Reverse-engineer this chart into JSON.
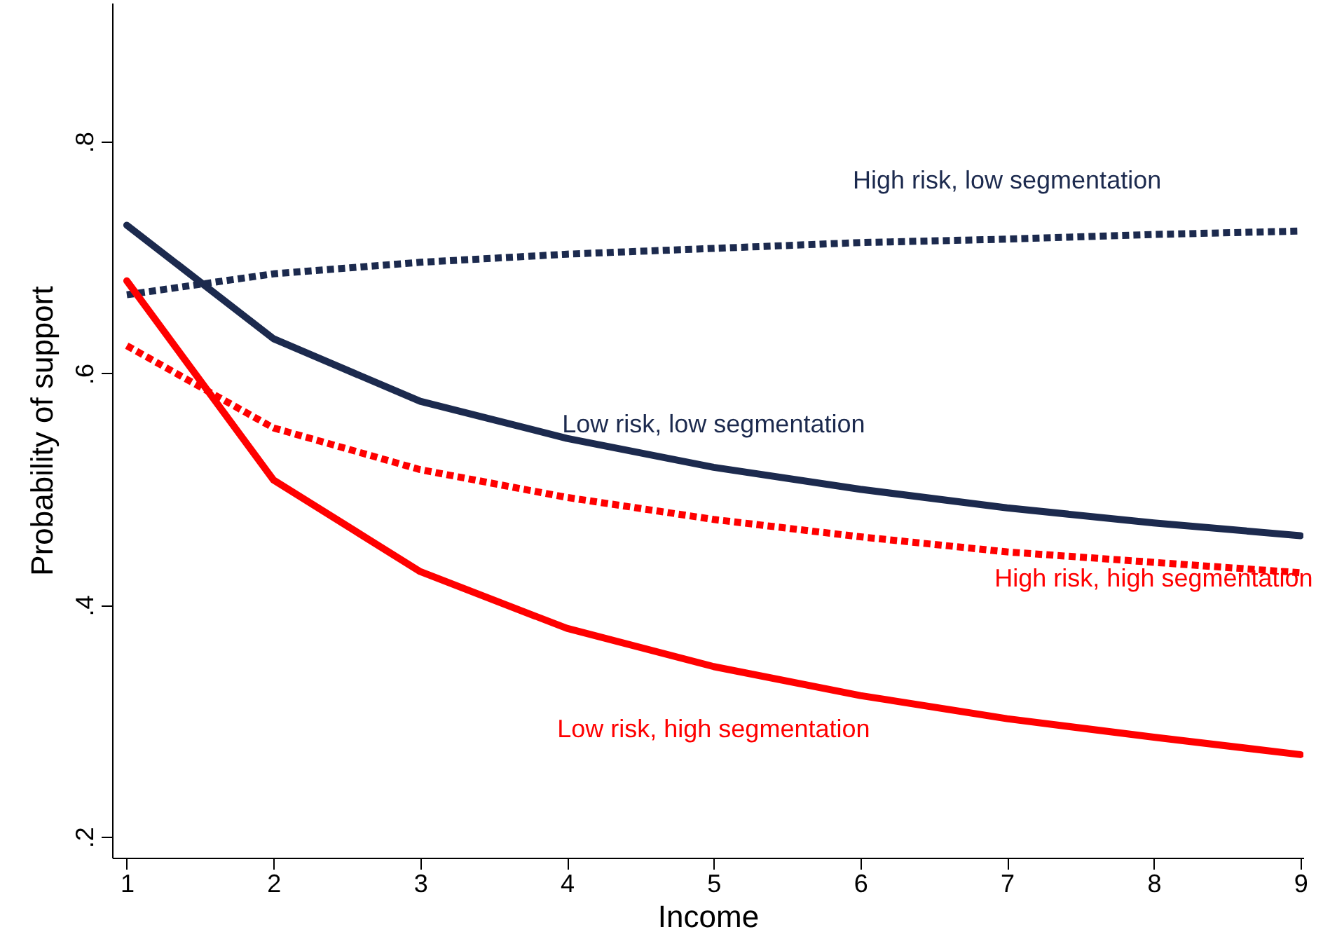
{
  "chart_data": {
    "type": "line",
    "xlabel": "Income",
    "ylabel": "Probability of support",
    "x": [
      1,
      2,
      3,
      4,
      5,
      6,
      7,
      8,
      9
    ],
    "xlim": [
      0.9,
      9.02
    ],
    "xticks": [
      1,
      2,
      3,
      4,
      5,
      6,
      7,
      8,
      9
    ],
    "ylim": [
      0.182,
      0.92
    ],
    "yticks": [
      {
        "value": 0.2,
        "label": ".2"
      },
      {
        "value": 0.4,
        "label": ".4"
      },
      {
        "value": 0.6,
        "label": ".6"
      },
      {
        "value": 0.8,
        "label": ".8"
      }
    ],
    "grid": false,
    "series": [
      {
        "name": "High risk, low segmentation",
        "color": "#1c2a4e",
        "line_style": "dotted",
        "values": [
          0.668,
          0.686,
          0.696,
          0.703,
          0.708,
          0.713,
          0.716,
          0.72,
          0.723
        ]
      },
      {
        "name": "Low risk, low segmentation",
        "color": "#1c2a4e",
        "line_style": "solid",
        "values": [
          0.728,
          0.63,
          0.576,
          0.544,
          0.519,
          0.5,
          0.484,
          0.471,
          0.46
        ]
      },
      {
        "name": "High risk, high segmentation",
        "color": "#ff0000",
        "line_style": "dotted",
        "values": [
          0.624,
          0.553,
          0.517,
          0.493,
          0.474,
          0.459,
          0.446,
          0.437,
          0.428
        ]
      },
      {
        "name": "Low risk, high segmentation",
        "color": "#ff0000",
        "line_style": "solid",
        "values": [
          0.68,
          0.508,
          0.429,
          0.38,
          0.347,
          0.322,
          0.302,
          0.286,
          0.271
        ]
      }
    ]
  }
}
